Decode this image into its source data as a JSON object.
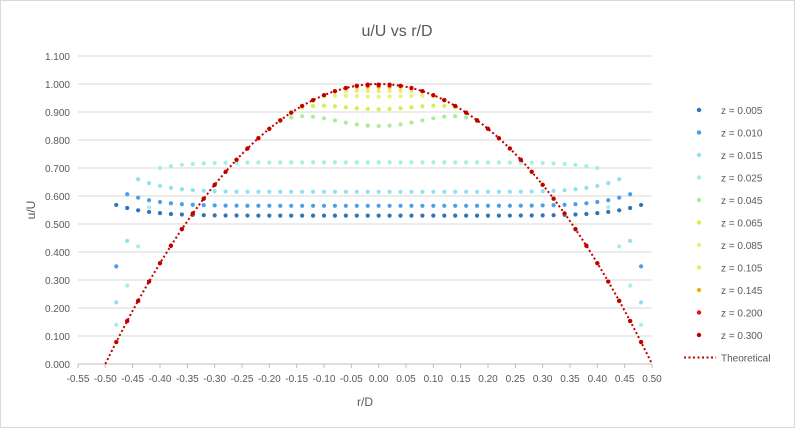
{
  "chart_data": {
    "type": "scatter",
    "title": "u/U vs r/D",
    "xlabel": "r/D",
    "ylabel": "u/U",
    "xlim": [
      -0.55,
      0.5
    ],
    "ylim": [
      0.0,
      1.1
    ],
    "x_ticks": [
      "-0.55",
      "-0.50",
      "-0.45",
      "-0.40",
      "-0.35",
      "-0.30",
      "-0.25",
      "-0.20",
      "-0.15",
      "-0.10",
      "-0.05",
      "0.00",
      "0.05",
      "0.10",
      "0.15",
      "0.20",
      "0.25",
      "0.30",
      "0.35",
      "0.40",
      "0.45",
      "0.50"
    ],
    "y_ticks": [
      "0.000",
      "0.100",
      "0.200",
      "0.300",
      "0.400",
      "0.500",
      "0.600",
      "0.700",
      "0.800",
      "0.900",
      "1.000",
      "1.100"
    ],
    "grid": "horizontal",
    "legend_position": "right",
    "series": [
      {
        "name": "z = 0.005",
        "color": "#2e75b6",
        "plateau": 0.53,
        "edge": 0.57,
        "wall": 0.483
      },
      {
        "name": "z = 0.010",
        "color": "#4a9fe8",
        "plateau": 0.565,
        "edge": 0.61,
        "wall": 0.465
      },
      {
        "name": "z = 0.015",
        "color": "#8fe0f5",
        "plateau": 0.615,
        "edge": 0.66,
        "wall": 0.44
      },
      {
        "name": "z = 0.025",
        "color": "#a6f0e0",
        "plateau": 0.72,
        "edge": 0.7,
        "wall": 0.4
      },
      {
        "name": "z = 0.045",
        "color": "#a8ee98",
        "plateau": 0.85,
        "edge": 0.7,
        "wall": 0.36
      },
      {
        "name": "z = 0.065",
        "color": "#d8ee4a",
        "plateau": 0.91,
        "edge": 0.7,
        "wall": 0.34
      },
      {
        "name": "z = 0.085",
        "color": "#e8f080",
        "plateau": 0.955,
        "edge": 0.7,
        "wall": 0.32
      },
      {
        "name": "z = 0.105",
        "color": "#f0e86a",
        "plateau": 0.975,
        "edge": 0.7,
        "wall": 0.31
      },
      {
        "name": "z = 0.145",
        "color": "#f0b400",
        "plateau": 0.99,
        "edge": 0.7,
        "wall": 0.3
      },
      {
        "name": "z = 0.200",
        "color": "#e81010",
        "plateau": 0.995,
        "edge": 0.7,
        "wall": 0.29
      },
      {
        "name": "z = 0.300",
        "color": "#c00000",
        "plateau": 0.998,
        "edge": 0.7,
        "wall": 0.28
      }
    ],
    "r_samples": [
      -0.48,
      -0.46,
      -0.44,
      -0.42,
      -0.4,
      -0.38,
      -0.36,
      -0.34,
      -0.32,
      -0.3,
      -0.28,
      -0.26,
      -0.24,
      -0.22,
      -0.2,
      -0.18,
      -0.16,
      -0.14,
      -0.12,
      -0.1,
      -0.08,
      -0.06,
      -0.04,
      -0.02,
      0.0,
      0.02,
      0.04,
      0.06,
      0.08,
      0.1,
      0.12,
      0.14,
      0.16,
      0.18,
      0.2,
      0.22,
      0.24,
      0.26,
      0.28,
      0.3,
      0.32,
      0.34,
      0.36,
      0.38,
      0.4,
      0.42,
      0.44,
      0.46,
      0.48
    ],
    "theoretical": {
      "name": "Theoretical",
      "color": "#c00000",
      "formula": "u/U = 1 - 4 (r/D)^2",
      "x_range": [
        -0.5,
        0.5
      ]
    }
  }
}
